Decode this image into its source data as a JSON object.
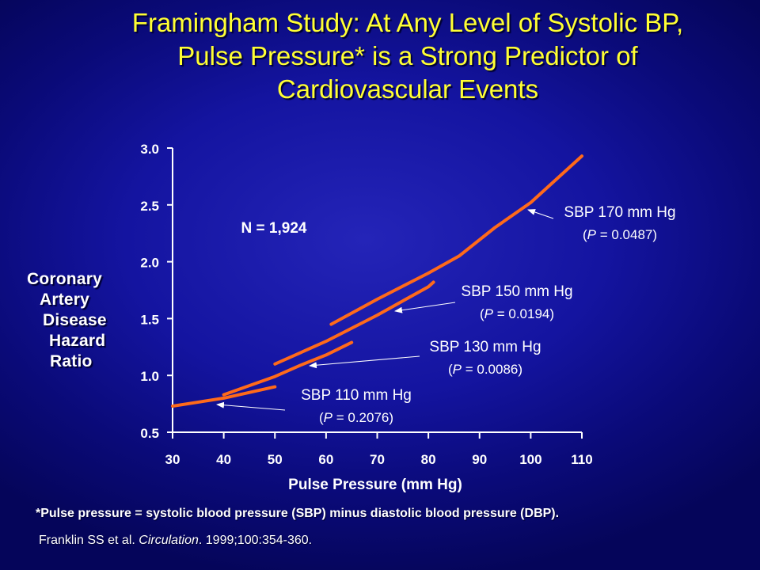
{
  "title": {
    "line1": "Framingham Study: At Any Level of Systolic BP,",
    "line2": "Pulse Pressure* is a Strong Predictor of",
    "line3": "Cardiovascular Events"
  },
  "y_axis_label": [
    "Coronary",
    "Artery",
    "Disease",
    "Hazard",
    "Ratio"
  ],
  "footnote": "*Pulse pressure = systolic blood pressure (SBP) minus diastolic blood pressure (DBP).",
  "citation": {
    "authors": "Franklin SS et al. ",
    "journal": "Circulation",
    "rest": ". 1999;100:354-360."
  },
  "colors": {
    "background": "#1414a0",
    "title": "#ffff33",
    "line": "#ff6a1a",
    "text": "#ffffff"
  },
  "chart_data": {
    "type": "line",
    "title": "",
    "xlabel": "Pulse Pressure (mm Hg)",
    "ylabel": "Coronary Artery Disease Hazard Ratio",
    "xlim": [
      30,
      110
    ],
    "ylim": [
      0.5,
      3.0
    ],
    "xticks": [
      30,
      40,
      50,
      60,
      70,
      80,
      90,
      100,
      110
    ],
    "yticks": [
      0.5,
      1.0,
      1.5,
      2.0,
      2.5,
      3.0
    ],
    "ytick_labels": [
      "0.5",
      "1.0",
      "1.5",
      "2.0",
      "2.5",
      "3.0"
    ],
    "grid": false,
    "annotation": "N = 1,924",
    "series": [
      {
        "name": "SBP 110 mm Hg",
        "p_label_prefix": "(",
        "p_label_italic": "P",
        "p_label_rest": " = 0.2076)",
        "points": [
          [
            30,
            0.73
          ],
          [
            40,
            0.8
          ],
          [
            50,
            0.9
          ]
        ]
      },
      {
        "name": "SBP 130 mm Hg",
        "p_label_prefix": "(",
        "p_label_italic": "P",
        "p_label_rest": " = 0.0086)",
        "points": [
          [
            40,
            0.83
          ],
          [
            50,
            0.99
          ],
          [
            55,
            1.09
          ],
          [
            60,
            1.18
          ],
          [
            65,
            1.29
          ]
        ]
      },
      {
        "name": "SBP 150 mm Hg",
        "p_label_prefix": "(",
        "p_label_italic": "P",
        "p_label_rest": " = 0.0194)",
        "points": [
          [
            50,
            1.1
          ],
          [
            60,
            1.3
          ],
          [
            70,
            1.53
          ],
          [
            80,
            1.78
          ],
          [
            81,
            1.82
          ]
        ]
      },
      {
        "name": "SBP 170 mm Hg",
        "p_label_prefix": "(",
        "p_label_italic": "P",
        "p_label_rest": " = 0.0487)",
        "points": [
          [
            61,
            1.45
          ],
          [
            70,
            1.67
          ],
          [
            80,
            1.9
          ],
          [
            86,
            2.05
          ],
          [
            93,
            2.3
          ],
          [
            100,
            2.52
          ],
          [
            110,
            2.93
          ]
        ]
      }
    ]
  }
}
